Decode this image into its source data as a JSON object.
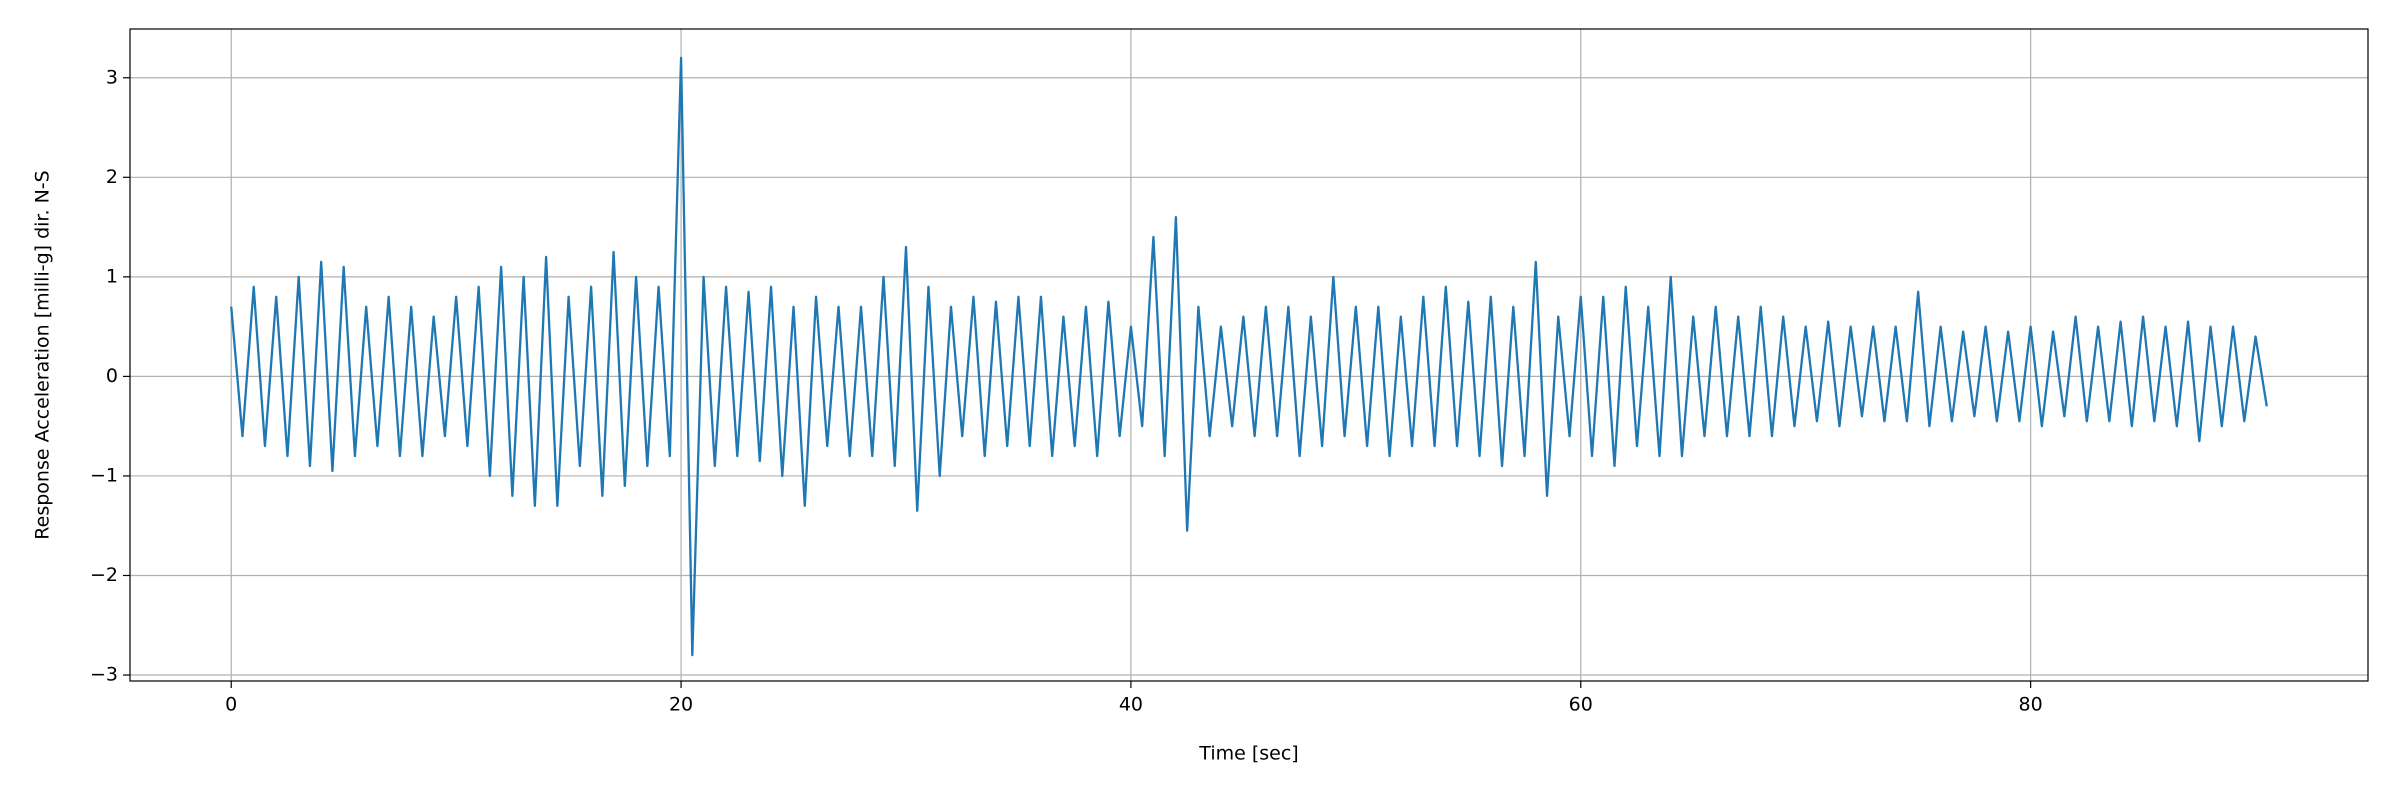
{
  "chart_data": {
    "type": "line",
    "xlabel": "Time [sec]",
    "ylabel": "Response Acceleration [milli-g] dir. N-S",
    "x": [
      0,
      0.5,
      1,
      1.5,
      2,
      2.5,
      3,
      3.5,
      4,
      4.5,
      5,
      5.5,
      6,
      6.5,
      7,
      7.5,
      8,
      8.5,
      9,
      9.5,
      10,
      10.5,
      11,
      11.5,
      12,
      12.5,
      13,
      13.5,
      14,
      14.5,
      15,
      15.5,
      16,
      16.5,
      17,
      17.5,
      18,
      18.5,
      19,
      19.5,
      20,
      20.5,
      21,
      21.5,
      22,
      22.5,
      23,
      23.5,
      24,
      24.5,
      25,
      25.5,
      26,
      26.5,
      27,
      27.5,
      28,
      28.5,
      29,
      29.5,
      30,
      30.5,
      31,
      31.5,
      32,
      32.5,
      33,
      33.5,
      34,
      34.5,
      35,
      35.5,
      36,
      36.5,
      37,
      37.5,
      38,
      38.5,
      39,
      39.5,
      40,
      40.5,
      41,
      41.5,
      42,
      42.5,
      43,
      43.5,
      44,
      44.5,
      45,
      45.5,
      46,
      46.5,
      47,
      47.5,
      48,
      48.5,
      49,
      49.5,
      50,
      50.5,
      51,
      51.5,
      52,
      52.5,
      53,
      53.5,
      54,
      54.5,
      55,
      55.5,
      56,
      56.5,
      57,
      57.5,
      58,
      58.5,
      59,
      59.5,
      60,
      60.5,
      61,
      61.5,
      62,
      62.5,
      63,
      63.5,
      64,
      64.5,
      65,
      65.5,
      66,
      66.5,
      67,
      67.5,
      68,
      68.5,
      69,
      69.5,
      70,
      70.5,
      71,
      71.5,
      72,
      72.5,
      73,
      73.5,
      74,
      74.5,
      75,
      75.5,
      76,
      76.5,
      77,
      77.5,
      78,
      78.5,
      79,
      79.5,
      80,
      80.5,
      81,
      81.5,
      82,
      82.5,
      83,
      83.5,
      84,
      84.5,
      85,
      85.5,
      86,
      86.5,
      87,
      87.5,
      88,
      88.5,
      89,
      89.5,
      90,
      90.5
    ],
    "series": [
      {
        "color": "#1f77b4",
        "values": [
          0.7,
          -0.6,
          0.9,
          -0.7,
          0.8,
          -0.8,
          1.0,
          -0.9,
          1.15,
          -0.95,
          1.1,
          -0.8,
          0.7,
          -0.7,
          0.8,
          -0.8,
          0.7,
          -0.8,
          0.6,
          -0.6,
          0.8,
          -0.7,
          0.9,
          -1.0,
          1.1,
          -1.2,
          1.0,
          -1.3,
          1.2,
          -1.3,
          0.8,
          -0.9,
          0.9,
          -1.2,
          1.25,
          -1.1,
          1.0,
          -0.9,
          0.9,
          -0.8,
          3.2,
          -2.8,
          1.0,
          -0.9,
          0.9,
          -0.8,
          0.85,
          -0.85,
          0.9,
          -1.0,
          0.7,
          -1.3,
          0.8,
          -0.7,
          0.7,
          -0.8,
          0.7,
          -0.8,
          1.0,
          -0.9,
          1.3,
          -1.35,
          0.9,
          -1.0,
          0.7,
          -0.6,
          0.8,
          -0.8,
          0.75,
          -0.7,
          0.8,
          -0.7,
          0.8,
          -0.8,
          0.6,
          -0.7,
          0.7,
          -0.8,
          0.75,
          -0.6,
          0.5,
          -0.5,
          1.4,
          -0.8,
          1.6,
          -1.55,
          0.7,
          -0.6,
          0.5,
          -0.5,
          0.6,
          -0.6,
          0.7,
          -0.6,
          0.7,
          -0.8,
          0.6,
          -0.7,
          1.0,
          -0.6,
          0.7,
          -0.7,
          0.7,
          -0.8,
          0.6,
          -0.7,
          0.8,
          -0.7,
          0.9,
          -0.7,
          0.75,
          -0.8,
          0.8,
          -0.9,
          0.7,
          -0.8,
          1.15,
          -1.2,
          0.6,
          -0.6,
          0.8,
          -0.8,
          0.8,
          -0.9,
          0.9,
          -0.7,
          0.7,
          -0.8,
          1.0,
          -0.8,
          0.6,
          -0.6,
          0.7,
          -0.6,
          0.6,
          -0.6,
          0.7,
          -0.6,
          0.6,
          -0.5,
          0.5,
          -0.45,
          0.55,
          -0.5,
          0.5,
          -0.4,
          0.5,
          -0.45,
          0.5,
          -0.45,
          0.85,
          -0.5,
          0.5,
          -0.45,
          0.45,
          -0.4,
          0.5,
          -0.45,
          0.45,
          -0.45,
          0.5,
          -0.5,
          0.45,
          -0.4,
          0.6,
          -0.45,
          0.5,
          -0.45,
          0.55,
          -0.5,
          0.6,
          -0.45,
          0.5,
          -0.5,
          0.55,
          -0.65,
          0.5,
          -0.5,
          0.5,
          -0.45,
          0.4,
          -0.3
        ]
      }
    ],
    "xlim": [
      -4.5,
      95
    ],
    "ylim": [
      -3.06,
      3.49
    ],
    "xticks": [
      0,
      20,
      40,
      60,
      80
    ],
    "yticks": [
      {
        "value": -3,
        "label": "−3"
      },
      {
        "value": -2,
        "label": "−2"
      },
      {
        "value": -1,
        "label": "−1"
      },
      0,
      1,
      2,
      3
    ],
    "grid": true
  }
}
